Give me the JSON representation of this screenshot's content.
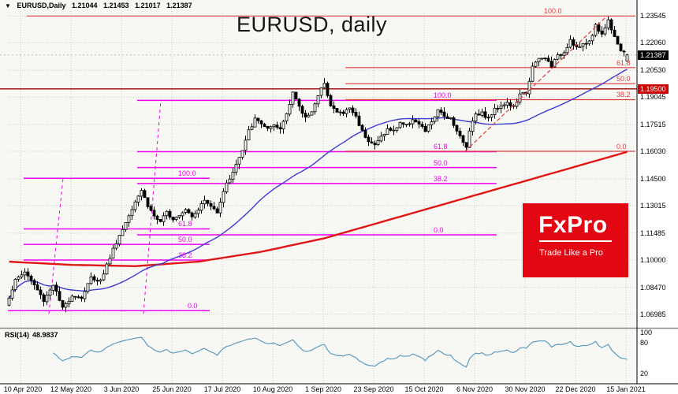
{
  "title": "EURUSD, daily",
  "header": {
    "dropdown_icon": "▼",
    "symbol": "EURUSD,Daily",
    "open": "1.21044",
    "high": "1.21453",
    "low": "1.21017",
    "close": "1.21387"
  },
  "logo": {
    "name": "FxPro",
    "tagline": "Trade Like a Pro"
  },
  "rsi": {
    "label": "RSI(14)",
    "value": "48.9837"
  },
  "colors": {
    "plot_bg": "#f7f7f3",
    "grid": "#c9c9c9",
    "candle_up": "#ffffff",
    "candle_down": "#000000",
    "candle_outline": "#000000",
    "ma_blue": "#3c3cd2",
    "ma_red": "#e01616",
    "fib_magenta": "#f000f0",
    "fib_red": "#e03c3c",
    "support_red": "#990000",
    "support_box_bg": "#cc0000",
    "price_box_bg": "#000000",
    "current_price_line": "#b8b8b8",
    "rsi_line": "#4f94bd",
    "logo_bg": "#e30613",
    "axis_text": "#000000"
  },
  "chart_data": {
    "type": "candlestick",
    "symbol": "EURUSD",
    "timeframe": "Daily",
    "title": "EURUSD, daily",
    "last_candle": {
      "open": 1.21044,
      "high": 1.21453,
      "low": 1.21017,
      "close": 1.21387
    },
    "y_axis": {
      "range": {
        "top": 1.24,
        "bottom": 1.064
      },
      "grid_labels": [
        "1.23545",
        "1.22060",
        "1.20530",
        "1.19045",
        "1.17515",
        "1.16030",
        "1.14500",
        "1.13015",
        "1.11485",
        "1.10000",
        "1.08470",
        "1.06985"
      ],
      "current_price": 1.21387,
      "current_price_label": "1.21387",
      "support_line": 1.195,
      "support_line_label": "1.19500"
    },
    "x_axis": {
      "dates": [
        "10 Apr 2020",
        "12 May 2020",
        "3 Jun 2020",
        "25 Jun 2020",
        "17 Jul 2020",
        "10 Aug 2020",
        "1 Sep 2020",
        "23 Sep 2020",
        "15 Oct 2020",
        "6 Nov 2020",
        "30 Nov 2020",
        "22 Dec 2020",
        "15 Jan 2021"
      ],
      "first_tick_candle_index": 4,
      "tick_step_candles": 16,
      "candle_count": 197
    },
    "close_anchors": [
      [
        0,
        1.0795
      ],
      [
        2,
        1.0885
      ],
      [
        5,
        1.0935
      ],
      [
        8,
        1.086
      ],
      [
        11,
        1.0775
      ],
      [
        14,
        1.0865
      ],
      [
        17,
        1.0727
      ],
      [
        20,
        1.0805
      ],
      [
        23,
        1.079
      ],
      [
        26,
        1.09
      ],
      [
        29,
        1.0885
      ],
      [
        32,
        1.1015
      ],
      [
        34,
        1.11
      ],
      [
        36,
        1.117
      ],
      [
        38,
        1.125
      ],
      [
        40,
        1.133
      ],
      [
        42,
        1.139
      ],
      [
        44,
        1.13
      ],
      [
        46,
        1.1245
      ],
      [
        48,
        1.1205
      ],
      [
        50,
        1.1265
      ],
      [
        52,
        1.123
      ],
      [
        54,
        1.1255
      ],
      [
        56,
        1.1285
      ],
      [
        58,
        1.1245
      ],
      [
        60,
        1.1285
      ],
      [
        62,
        1.133
      ],
      [
        64,
        1.1295
      ],
      [
        66,
        1.127
      ],
      [
        68,
        1.1385
      ],
      [
        70,
        1.1455
      ],
      [
        72,
        1.153
      ],
      [
        74,
        1.1605
      ],
      [
        76,
        1.1715
      ],
      [
        78,
        1.178
      ],
      [
        80,
        1.176
      ],
      [
        82,
        1.1725
      ],
      [
        84,
        1.174
      ],
      [
        86,
        1.1725
      ],
      [
        88,
        1.1815
      ],
      [
        90,
        1.1935
      ],
      [
        92,
        1.1845
      ],
      [
        94,
        1.179
      ],
      [
        96,
        1.183
      ],
      [
        98,
        1.1905
      ],
      [
        100,
        1.199
      ],
      [
        102,
        1.1855
      ],
      [
        104,
        1.182
      ],
      [
        106,
        1.1815
      ],
      [
        108,
        1.1845
      ],
      [
        110,
        1.1795
      ],
      [
        112,
        1.1715
      ],
      [
        114,
        1.1665
      ],
      [
        116,
        1.1635
      ],
      [
        118,
        1.1685
      ],
      [
        120,
        1.1725
      ],
      [
        122,
        1.1715
      ],
      [
        124,
        1.1765
      ],
      [
        126,
        1.1745
      ],
      [
        128,
        1.1785
      ],
      [
        130,
        1.175
      ],
      [
        132,
        1.1715
      ],
      [
        134,
        1.177
      ],
      [
        136,
        1.1825
      ],
      [
        138,
        1.18
      ],
      [
        140,
        1.179
      ],
      [
        142,
        1.172
      ],
      [
        144,
        1.165
      ],
      [
        145,
        1.1625
      ],
      [
        146,
        1.1725
      ],
      [
        148,
        1.1815
      ],
      [
        150,
        1.1815
      ],
      [
        152,
        1.1785
      ],
      [
        154,
        1.1835
      ],
      [
        156,
        1.1862
      ],
      [
        158,
        1.1872
      ],
      [
        160,
        1.1845
      ],
      [
        162,
        1.1915
      ],
      [
        164,
        1.193
      ],
      [
        166,
        1.207
      ],
      [
        168,
        1.2115
      ],
      [
        170,
        1.212
      ],
      [
        172,
        1.208
      ],
      [
        174,
        1.213
      ],
      [
        176,
        1.2155
      ],
      [
        178,
        1.2225
      ],
      [
        180,
        1.218
      ],
      [
        182,
        1.219
      ],
      [
        184,
        1.2215
      ],
      [
        186,
        1.23
      ],
      [
        188,
        1.2255
      ],
      [
        190,
        1.233
      ],
      [
        192,
        1.2245
      ],
      [
        194,
        1.2165
      ],
      [
        196,
        1.21387
      ]
    ],
    "red_ma_anchors": [
      [
        0,
        1.099
      ],
      [
        20,
        1.0972
      ],
      [
        40,
        1.0965
      ],
      [
        60,
        1.099
      ],
      [
        80,
        1.1045
      ],
      [
        100,
        1.112
      ],
      [
        120,
        1.122
      ],
      [
        140,
        1.132
      ],
      [
        160,
        1.142
      ],
      [
        180,
        1.152
      ],
      [
        196,
        1.16
      ]
    ],
    "blue_sma_period": 50,
    "specials": {
      "100": {
        "high": 1.201
      },
      "145": {
        "low": 1.1604
      },
      "190": {
        "high": 1.2352
      },
      "196": {
        "open": 1.21044,
        "high": 1.21453,
        "low": 1.21017,
        "close": 1.21387
      }
    },
    "fibonacci": [
      {
        "name": "fib-small-magenta",
        "color": "#f000f0",
        "span": [
          5,
          64
        ],
        "label_index": 54,
        "levels": [
          {
            "label": "0.0",
            "price": 1.0718,
            "span": [
              0,
              64
            ],
            "label_index": 57
          },
          {
            "label": "38.2",
            "price": 1.0999
          },
          {
            "label": "50.0",
            "price": 1.1086
          },
          {
            "label": "61.8",
            "price": 1.1172
          },
          {
            "label": "100.0",
            "price": 1.1453
          }
        ]
      },
      {
        "name": "fib-large-magenta",
        "color": "#f000f0",
        "span": [
          41,
          155
        ],
        "label_index": 135,
        "levels": [
          {
            "label": "0.0",
            "price": 1.1139
          },
          {
            "label": "38.2",
            "price": 1.1424
          },
          {
            "label": "50.0",
            "price": 1.1513
          },
          {
            "label": "61.8",
            "price": 1.1601
          },
          {
            "label": "100.0",
            "price": 1.1886
          }
        ]
      },
      {
        "name": "fib-red",
        "color": "#e03c3c",
        "span": [
          107,
          199
        ],
        "label_index": 193,
        "levels": [
          {
            "label": "0.0",
            "price": 1.1603
          },
          {
            "label": "38.2",
            "price": 1.189
          },
          {
            "label": "50.0",
            "price": 1.1979
          },
          {
            "label": "61.8",
            "price": 1.2068
          },
          {
            "label": "100.0",
            "price": 1.2355,
            "span": [
              6,
              199
            ],
            "label_index": 170
          }
        ]
      }
    ],
    "trendline": {
      "from": {
        "index": 145,
        "price": 1.1603
      },
      "to": {
        "index": 190,
        "price": 1.2355
      },
      "color": "#e03c3c",
      "style": "dashed"
    },
    "vertical_lines": [
      {
        "from": {
          "index": 13,
          "price": 1.07
        },
        "to": {
          "index": 17.5,
          "price": 1.1453
        },
        "color": "#f000f0"
      },
      {
        "from": {
          "index": 43,
          "price": 1.07
        },
        "to": {
          "index": 48.5,
          "price": 1.1886
        },
        "color": "#f000f0"
      }
    ],
    "rsi": {
      "period": 14,
      "axis_labels": [
        100,
        80,
        20
      ],
      "range": [
        0,
        100
      ],
      "last_value": 48.9837
    }
  }
}
